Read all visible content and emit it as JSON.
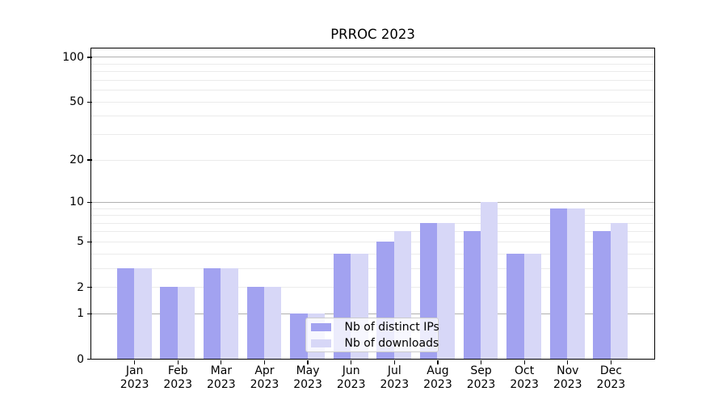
{
  "title": "PRROC 2023",
  "chart_data": {
    "type": "bar",
    "title": "PRROC 2023",
    "categories": [
      "Jan",
      "Feb",
      "Mar",
      "Apr",
      "May",
      "Jun",
      "Jul",
      "Aug",
      "Sep",
      "Oct",
      "Nov",
      "Dec"
    ],
    "year": "2023",
    "x_tick_labels": [
      "Jan 2023",
      "Feb 2023",
      "Mar 2023",
      "Apr 2023",
      "May 2023",
      "Jun 2023",
      "Jul 2023",
      "Aug 2023",
      "Sep 2023",
      "Oct 2023",
      "Nov 2023",
      "Dec 2023"
    ],
    "series": [
      {
        "name": "Nb of distinct IPs",
        "color": "#a2a2f0",
        "values": [
          3,
          2,
          3,
          2,
          1,
          4,
          5,
          7,
          6,
          4,
          9,
          6
        ]
      },
      {
        "name": "Nb of downloads",
        "color": "#d7d7f7",
        "values": [
          3,
          2,
          3,
          2,
          1,
          4,
          6,
          7,
          10,
          4,
          9,
          7
        ]
      }
    ],
    "xlabel": "",
    "ylabel": "",
    "y_axis": {
      "scale": "log1p",
      "tick_values": [
        0,
        1,
        2,
        5,
        10,
        20,
        50,
        100
      ],
      "tick_labels": [
        "0",
        "1",
        "2",
        "5",
        "10",
        "20",
        "50",
        "100"
      ],
      "major_gridline_values": [
        1,
        10,
        100
      ],
      "minor_gridline_values": [
        2,
        3,
        4,
        5,
        6,
        7,
        8,
        9,
        20,
        30,
        40,
        50,
        60,
        70,
        80,
        90
      ],
      "ylim": [
        0,
        114.6
      ]
    },
    "legend": {
      "position": "lower center",
      "items": [
        "Nb of distinct IPs",
        "Nb of downloads"
      ]
    },
    "grid": true
  },
  "colors": {
    "background": "#ffffff",
    "bar_distinct_ips": "#a2a2f0",
    "bar_downloads": "#d7d7f7",
    "major_gridline": "#b0b0b0",
    "minor_gridline": "#ebebeb",
    "spine": "#000000",
    "tick_label": "#000000",
    "legend_border": "#cccccc"
  }
}
